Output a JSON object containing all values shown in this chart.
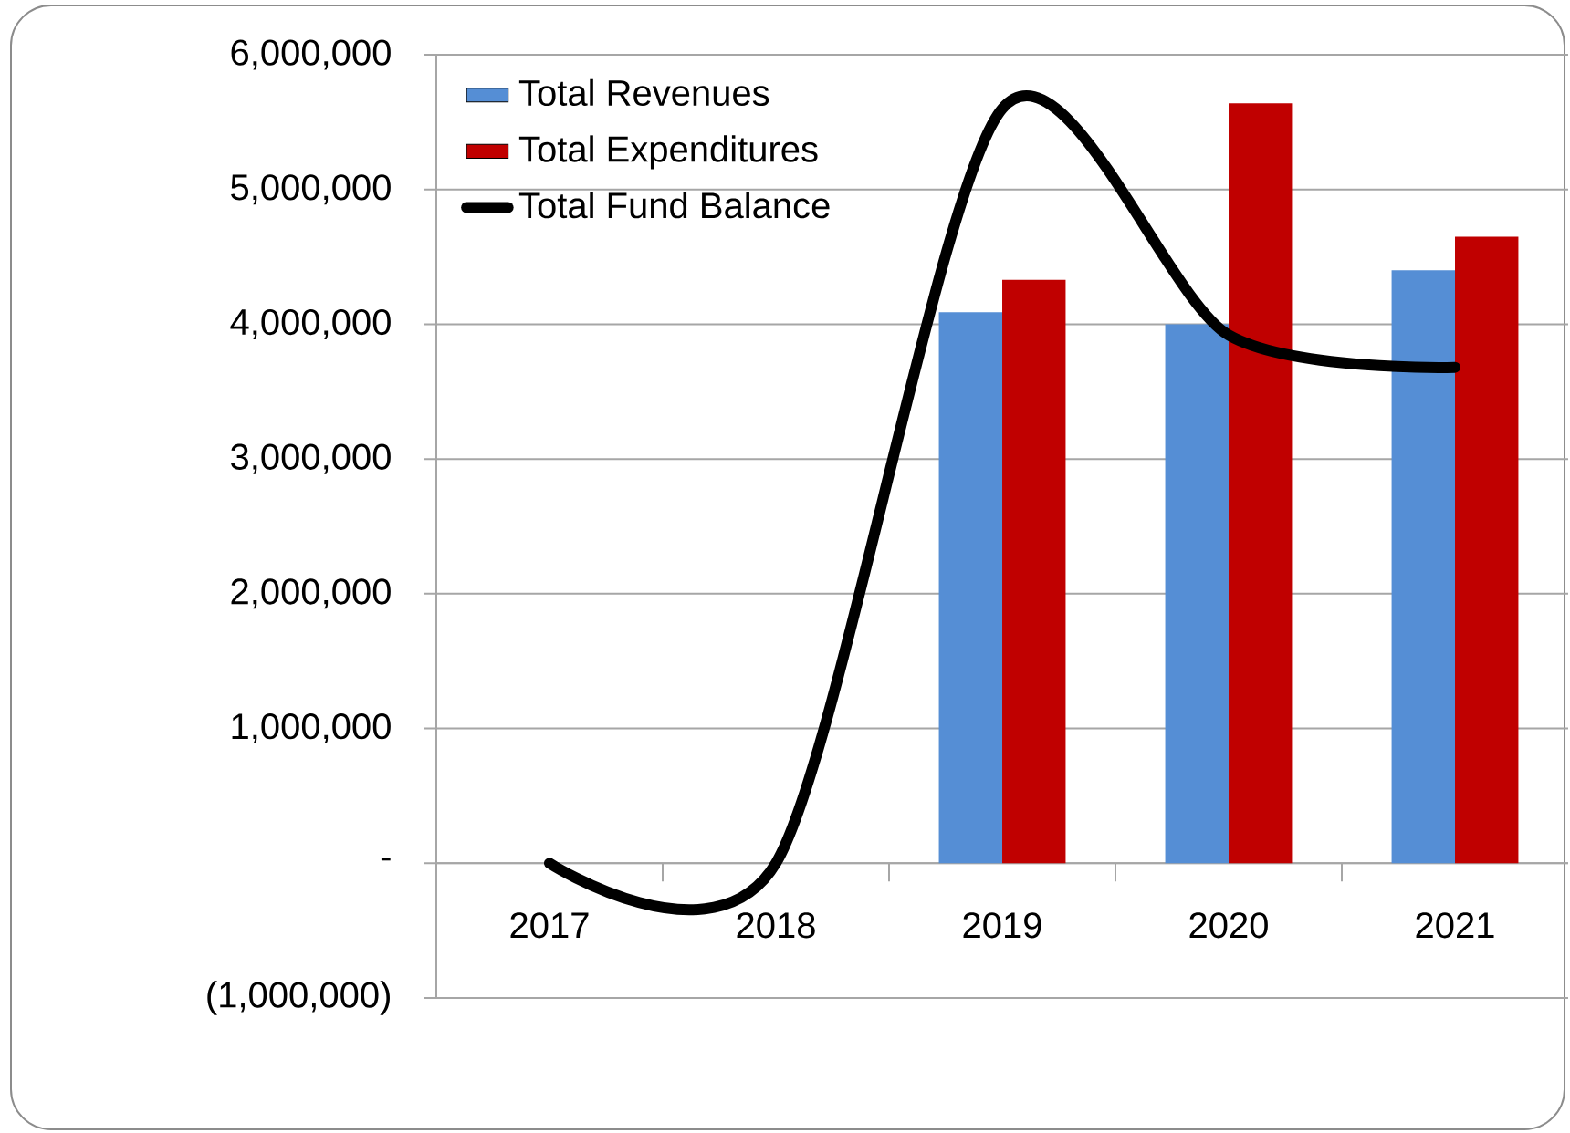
{
  "chart_data": {
    "type": "bar",
    "categories": [
      "2017",
      "2018",
      "2019",
      "2020",
      "2021"
    ],
    "series": [
      {
        "name": "Total Revenues",
        "color": "#558ed5",
        "values": [
          null,
          null,
          4090000,
          4000000,
          4400000
        ]
      },
      {
        "name": "Total Expenditures",
        "color": "#c00000",
        "values": [
          null,
          null,
          4330000,
          5640000,
          4650000
        ]
      },
      {
        "name": "Total Fund Balance",
        "type": "line",
        "color": "#000000",
        "values": [
          0,
          0,
          5600000,
          3920000,
          3680000
        ]
      }
    ],
    "ylim": [
      -1000000,
      6000000
    ],
    "yticks": [
      {
        "value": -1000000,
        "label": "(1,000,000)"
      },
      {
        "value": 0,
        "label": "-"
      },
      {
        "value": 1000000,
        "label": "1,000,000"
      },
      {
        "value": 2000000,
        "label": "2,000,000"
      },
      {
        "value": 3000000,
        "label": "3,000,000"
      },
      {
        "value": 4000000,
        "label": "4,000,000"
      },
      {
        "value": 5000000,
        "label": "5,000,000"
      },
      {
        "value": 6000000,
        "label": "6,000,000"
      }
    ],
    "grid": "y",
    "legend": "top left"
  }
}
